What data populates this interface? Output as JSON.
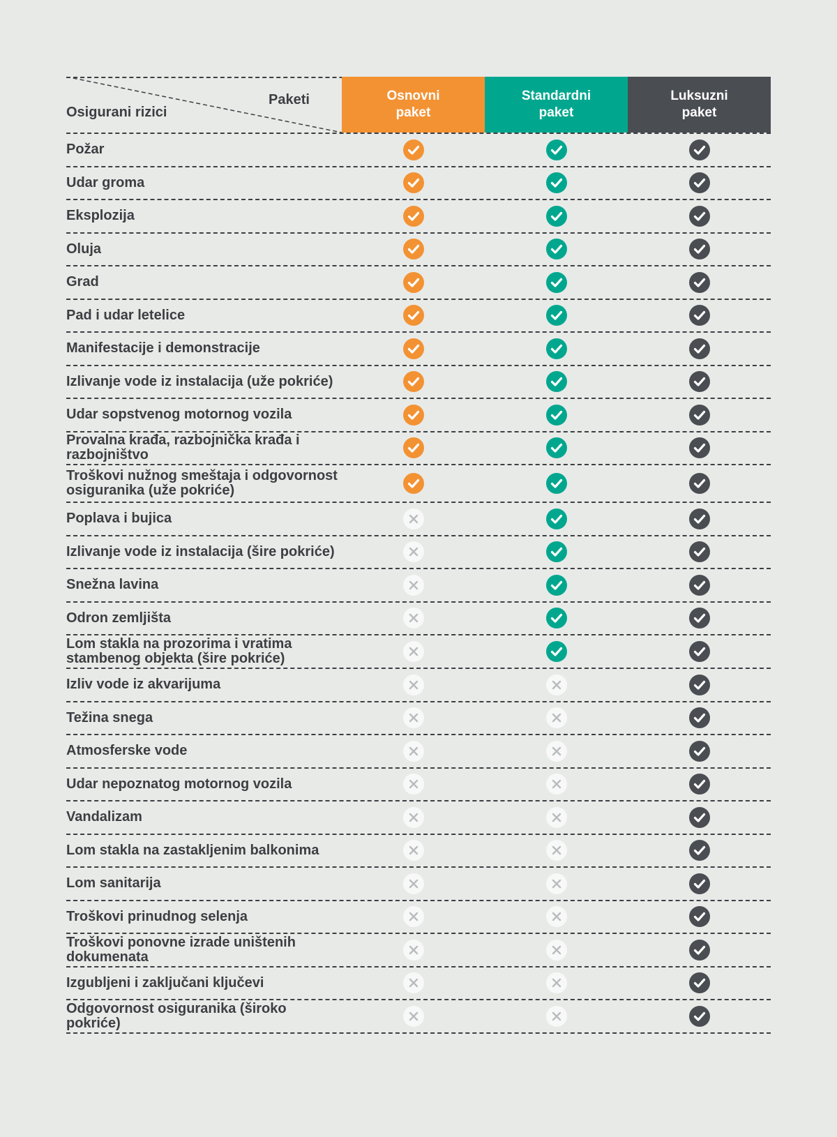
{
  "header": {
    "paketi_label": "Paketi",
    "rizici_label": "Osigurani rizici",
    "packages": [
      {
        "name_line1": "Osnovni",
        "name_line2": "paket",
        "color": "#f39233"
      },
      {
        "name_line1": "Standardni",
        "name_line2": "paket",
        "color": "#00a78e"
      },
      {
        "name_line1": "Luksuzni",
        "name_line2": "paket",
        "color": "#4a4d51"
      }
    ]
  },
  "colors": {
    "osnovni": "#f39233",
    "standardni": "#00a78e",
    "luksuzni": "#4a4d51",
    "excluded_bg": "#f7f8f7",
    "excluded_mark": "#b9bcbd"
  },
  "rows": [
    {
      "label": "Požar",
      "coverage": [
        true,
        true,
        true
      ]
    },
    {
      "label": "Udar groma",
      "coverage": [
        true,
        true,
        true
      ]
    },
    {
      "label": "Eksplozija",
      "coverage": [
        true,
        true,
        true
      ]
    },
    {
      "label": "Oluja",
      "coverage": [
        true,
        true,
        true
      ]
    },
    {
      "label": "Grad",
      "coverage": [
        true,
        true,
        true
      ]
    },
    {
      "label": "Pad i udar letelice",
      "coverage": [
        true,
        true,
        true
      ]
    },
    {
      "label": "Manifestacije i demonstracije",
      "coverage": [
        true,
        true,
        true
      ]
    },
    {
      "label": "Izlivanje vode iz instalacija (uže pokriće)",
      "coverage": [
        true,
        true,
        true
      ]
    },
    {
      "label": "Udar sopstvenog motornog vozila",
      "coverage": [
        true,
        true,
        true
      ]
    },
    {
      "label": "Provalna krađa, razbojnička krađa i razbojništvo",
      "coverage": [
        true,
        true,
        true
      ]
    },
    {
      "label": "Troškovi nužnog smeštaja i odgovornost osiguranika (uže pokriće)",
      "coverage": [
        true,
        true,
        true
      ]
    },
    {
      "label": "Poplava i bujica",
      "coverage": [
        false,
        true,
        true
      ]
    },
    {
      "label": "Izlivanje vode iz instalacija (šire pokriće)",
      "coverage": [
        false,
        true,
        true
      ]
    },
    {
      "label": "Snežna lavina",
      "coverage": [
        false,
        true,
        true
      ]
    },
    {
      "label": "Odron zemljišta",
      "coverage": [
        false,
        true,
        true
      ]
    },
    {
      "label": "Lom stakla na prozorima i vratima stambenog objekta (šire pokriće)",
      "coverage": [
        false,
        true,
        true
      ]
    },
    {
      "label": "Izliv vode iz akvarijuma",
      "coverage": [
        false,
        false,
        true
      ]
    },
    {
      "label": "Težina snega",
      "coverage": [
        false,
        false,
        true
      ]
    },
    {
      "label": "Atmosferske vode",
      "coverage": [
        false,
        false,
        true
      ]
    },
    {
      "label": "Udar nepoznatog motornog vozila",
      "coverage": [
        false,
        false,
        true
      ]
    },
    {
      "label": "Vandalizam",
      "coverage": [
        false,
        false,
        true
      ]
    },
    {
      "label": "Lom stakla na zastakljenim balkonima",
      "coverage": [
        false,
        false,
        true
      ]
    },
    {
      "label": "Lom sanitarija",
      "coverage": [
        false,
        false,
        true
      ]
    },
    {
      "label": "Troškovi prinudnog selenja",
      "coverage": [
        false,
        false,
        true
      ]
    },
    {
      "label": "Troškovi ponovne izrade uništenih dokumenata",
      "coverage": [
        false,
        false,
        true
      ]
    },
    {
      "label": "Izgubljeni i zaključani ključevi",
      "coverage": [
        false,
        false,
        true
      ]
    },
    {
      "label": "Odgovornost osiguranika (široko pokriće)",
      "coverage": [
        false,
        false,
        true
      ]
    }
  ]
}
